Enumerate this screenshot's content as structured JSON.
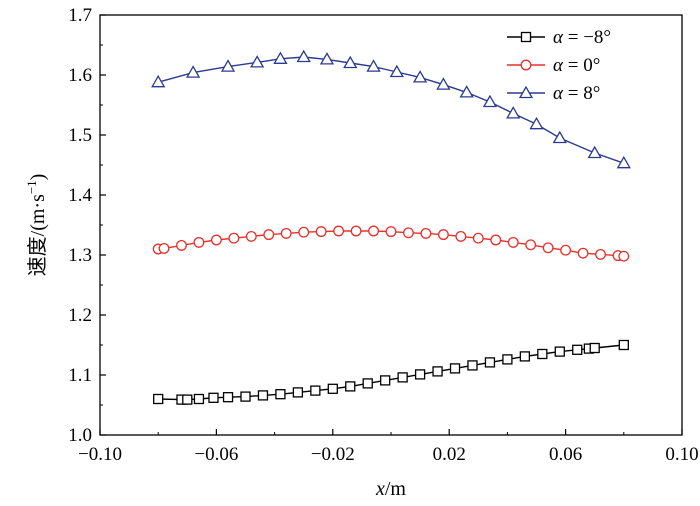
{
  "chart_data": {
    "type": "line",
    "xlabel_italic": "x",
    "xlabel_unit": "/m",
    "ylabel_main": "速度/(m·s",
    "ylabel_sup": "−1",
    "ylabel_close": ")",
    "xlim": [
      -0.1,
      0.1
    ],
    "ylim": [
      1.0,
      1.7
    ],
    "xticks": [
      -0.1,
      -0.06,
      -0.02,
      0.02,
      0.06,
      0.1
    ],
    "xtick_labels": [
      "−0.10",
      "−0.06",
      "−0.02",
      "0.02",
      "0.06",
      "0.10"
    ],
    "yticks": [
      1.0,
      1.1,
      1.2,
      1.3,
      1.4,
      1.5,
      1.6,
      1.7
    ],
    "ytick_labels": [
      "1.0",
      "1.1",
      "1.2",
      "1.3",
      "1.4",
      "1.5",
      "1.6",
      "1.7"
    ],
    "legend_position": "top-right",
    "series": [
      {
        "name": "α = −8°",
        "legend_symbol": "α",
        "legend_value": " = −8°",
        "color": "#000000",
        "marker": "square",
        "points": [
          [
            -0.08,
            1.06
          ],
          [
            -0.072,
            1.059
          ],
          [
            -0.07,
            1.059
          ],
          [
            -0.066,
            1.06
          ],
          [
            -0.061,
            1.062
          ],
          [
            -0.056,
            1.063
          ],
          [
            -0.05,
            1.064
          ],
          [
            -0.044,
            1.066
          ],
          [
            -0.038,
            1.068
          ],
          [
            -0.032,
            1.071
          ],
          [
            -0.026,
            1.074
          ],
          [
            -0.02,
            1.077
          ],
          [
            -0.014,
            1.081
          ],
          [
            -0.008,
            1.086
          ],
          [
            -0.002,
            1.091
          ],
          [
            0.004,
            1.096
          ],
          [
            0.01,
            1.101
          ],
          [
            0.016,
            1.106
          ],
          [
            0.022,
            1.111
          ],
          [
            0.028,
            1.116
          ],
          [
            0.034,
            1.121
          ],
          [
            0.04,
            1.126
          ],
          [
            0.046,
            1.131
          ],
          [
            0.052,
            1.135
          ],
          [
            0.058,
            1.139
          ],
          [
            0.064,
            1.142
          ],
          [
            0.068,
            1.144
          ],
          [
            0.07,
            1.145
          ],
          [
            0.08,
            1.15
          ]
        ]
      },
      {
        "name": "α = 0°",
        "legend_symbol": "α",
        "legend_value": " = 0°",
        "color": "#e8302a",
        "marker": "circle",
        "points": [
          [
            -0.08,
            1.31
          ],
          [
            -0.078,
            1.311
          ],
          [
            -0.072,
            1.316
          ],
          [
            -0.066,
            1.321
          ],
          [
            -0.06,
            1.325
          ],
          [
            -0.054,
            1.328
          ],
          [
            -0.048,
            1.331
          ],
          [
            -0.042,
            1.334
          ],
          [
            -0.036,
            1.336
          ],
          [
            -0.03,
            1.338
          ],
          [
            -0.024,
            1.339
          ],
          [
            -0.018,
            1.34
          ],
          [
            -0.012,
            1.34
          ],
          [
            -0.006,
            1.34
          ],
          [
            0.0,
            1.339
          ],
          [
            0.006,
            1.337
          ],
          [
            0.012,
            1.336
          ],
          [
            0.018,
            1.334
          ],
          [
            0.024,
            1.331
          ],
          [
            0.03,
            1.328
          ],
          [
            0.036,
            1.325
          ],
          [
            0.042,
            1.321
          ],
          [
            0.048,
            1.317
          ],
          [
            0.054,
            1.312
          ],
          [
            0.06,
            1.308
          ],
          [
            0.066,
            1.303
          ],
          [
            0.072,
            1.301
          ],
          [
            0.078,
            1.299
          ],
          [
            0.08,
            1.298
          ]
        ]
      },
      {
        "name": "α = 8°",
        "legend_symbol": "α",
        "legend_value": " = 8°",
        "color": "#2b3990",
        "marker": "triangle",
        "points": [
          [
            -0.08,
            1.588
          ],
          [
            -0.068,
            1.604
          ],
          [
            -0.056,
            1.614
          ],
          [
            -0.046,
            1.621
          ],
          [
            -0.038,
            1.627
          ],
          [
            -0.03,
            1.63
          ],
          [
            -0.022,
            1.626
          ],
          [
            -0.014,
            1.62
          ],
          [
            -0.006,
            1.614
          ],
          [
            0.002,
            1.605
          ],
          [
            0.01,
            1.596
          ],
          [
            0.018,
            1.584
          ],
          [
            0.026,
            1.571
          ],
          [
            0.034,
            1.555
          ],
          [
            0.042,
            1.536
          ],
          [
            0.05,
            1.518
          ],
          [
            0.058,
            1.495
          ],
          [
            0.07,
            1.47
          ],
          [
            0.08,
            1.453
          ]
        ]
      }
    ]
  }
}
